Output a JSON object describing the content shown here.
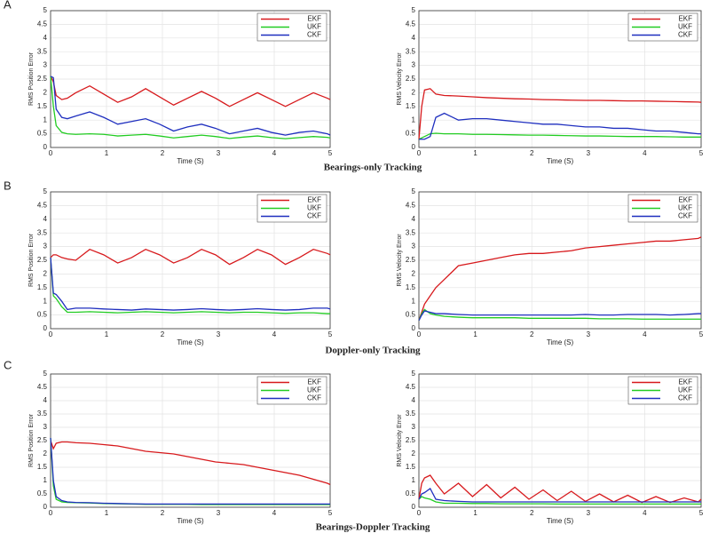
{
  "panels": [
    {
      "letter": "A",
      "caption": "Bearings-only Tracking"
    },
    {
      "letter": "B",
      "caption": "Doppler-only Tracking"
    },
    {
      "letter": "C",
      "caption": "Bearings-Doppler Tracking"
    }
  ],
  "chart_data": [
    {
      "type": "line",
      "x_label": "Time (S)",
      "y_label": "RMS Position Error",
      "xlim": [
        0,
        5
      ],
      "ylim": [
        0,
        5
      ],
      "xticks": [
        0,
        1,
        2,
        3,
        4,
        5
      ],
      "yticks": [
        0,
        0.5,
        1,
        1.5,
        2,
        2.5,
        3,
        3.5,
        4,
        4.5,
        5
      ],
      "grid": true,
      "legend": "upper right",
      "x": [
        0,
        0.05,
        0.1,
        0.2,
        0.3,
        0.45,
        0.7,
        0.95,
        1.2,
        1.45,
        1.7,
        1.95,
        2.2,
        2.45,
        2.7,
        2.95,
        3.2,
        3.45,
        3.7,
        3.95,
        4.2,
        4.45,
        4.7,
        4.95,
        5
      ],
      "series": [
        {
          "name": "EKF",
          "color": "#d7191c",
          "values": [
            2.6,
            2.4,
            1.9,
            1.75,
            1.8,
            2.0,
            2.25,
            1.95,
            1.65,
            1.85,
            2.15,
            1.85,
            1.55,
            1.8,
            2.05,
            1.8,
            1.5,
            1.75,
            2.0,
            1.75,
            1.5,
            1.75,
            2.0,
            1.8,
            1.75
          ]
        },
        {
          "name": "UKF",
          "color": "#22cc22",
          "values": [
            2.6,
            1.5,
            0.8,
            0.55,
            0.5,
            0.48,
            0.5,
            0.48,
            0.42,
            0.45,
            0.48,
            0.42,
            0.35,
            0.4,
            0.45,
            0.4,
            0.33,
            0.38,
            0.42,
            0.36,
            0.32,
            0.36,
            0.4,
            0.37,
            0.35
          ]
        },
        {
          "name": "CKF",
          "color": "#1f2fbf",
          "values": [
            2.6,
            2.55,
            1.4,
            1.1,
            1.05,
            1.15,
            1.3,
            1.1,
            0.85,
            0.95,
            1.05,
            0.85,
            0.6,
            0.75,
            0.85,
            0.7,
            0.5,
            0.6,
            0.7,
            0.55,
            0.45,
            0.55,
            0.6,
            0.5,
            0.45
          ]
        }
      ]
    },
    {
      "type": "line",
      "x_label": "Time (S)",
      "y_label": "RMS Velocity Error",
      "xlim": [
        0,
        5
      ],
      "ylim": [
        0,
        5
      ],
      "xticks": [
        0,
        1,
        2,
        3,
        4,
        5
      ],
      "yticks": [
        0,
        0.5,
        1,
        1.5,
        2,
        2.5,
        3,
        3.5,
        4,
        4.5,
        5
      ],
      "grid": true,
      "legend": "upper right",
      "x": [
        0,
        0.05,
        0.1,
        0.2,
        0.3,
        0.45,
        0.7,
        0.95,
        1.2,
        1.45,
        1.7,
        1.95,
        2.2,
        2.45,
        2.7,
        2.95,
        3.2,
        3.45,
        3.7,
        3.95,
        4.2,
        4.45,
        4.7,
        4.95,
        5
      ],
      "series": [
        {
          "name": "EKF",
          "color": "#d7191c",
          "values": [
            0.3,
            1.5,
            2.1,
            2.15,
            1.95,
            1.9,
            1.88,
            1.85,
            1.82,
            1.8,
            1.78,
            1.77,
            1.75,
            1.74,
            1.73,
            1.72,
            1.72,
            1.71,
            1.7,
            1.7,
            1.69,
            1.68,
            1.67,
            1.66,
            1.65
          ]
        },
        {
          "name": "UKF",
          "color": "#22cc22",
          "values": [
            0.3,
            0.35,
            0.4,
            0.5,
            0.52,
            0.5,
            0.5,
            0.48,
            0.48,
            0.47,
            0.46,
            0.45,
            0.45,
            0.44,
            0.43,
            0.42,
            0.42,
            0.41,
            0.4,
            0.4,
            0.4,
            0.39,
            0.38,
            0.38,
            0.38
          ]
        },
        {
          "name": "CKF",
          "color": "#1f2fbf",
          "values": [
            0.3,
            0.3,
            0.3,
            0.4,
            1.1,
            1.25,
            1.0,
            1.05,
            1.05,
            1.0,
            0.95,
            0.9,
            0.85,
            0.85,
            0.8,
            0.75,
            0.75,
            0.7,
            0.7,
            0.65,
            0.6,
            0.6,
            0.55,
            0.5,
            0.5
          ]
        }
      ]
    },
    {
      "type": "line",
      "x_label": "Time (S)",
      "y_label": "RMS Position Error",
      "xlim": [
        0,
        5
      ],
      "ylim": [
        0,
        5
      ],
      "xticks": [
        0,
        1,
        2,
        3,
        4,
        5
      ],
      "yticks": [
        0,
        0.5,
        1,
        1.5,
        2,
        2.5,
        3,
        3.5,
        4,
        4.5,
        5
      ],
      "grid": true,
      "legend": "upper right",
      "x": [
        0,
        0.05,
        0.1,
        0.2,
        0.3,
        0.45,
        0.7,
        0.95,
        1.2,
        1.45,
        1.7,
        1.95,
        2.2,
        2.45,
        2.7,
        2.95,
        3.2,
        3.45,
        3.7,
        3.95,
        4.2,
        4.45,
        4.7,
        4.95,
        5
      ],
      "series": [
        {
          "name": "EKF",
          "color": "#d7191c",
          "values": [
            2.6,
            2.7,
            2.7,
            2.6,
            2.55,
            2.5,
            2.9,
            2.7,
            2.4,
            2.6,
            2.9,
            2.7,
            2.4,
            2.6,
            2.9,
            2.7,
            2.35,
            2.6,
            2.9,
            2.7,
            2.35,
            2.6,
            2.9,
            2.75,
            2.7
          ]
        },
        {
          "name": "UKF",
          "color": "#22cc22",
          "values": [
            2.6,
            1.2,
            1.1,
            0.8,
            0.6,
            0.6,
            0.62,
            0.6,
            0.58,
            0.6,
            0.62,
            0.6,
            0.58,
            0.6,
            0.62,
            0.6,
            0.58,
            0.6,
            0.6,
            0.58,
            0.56,
            0.58,
            0.58,
            0.55,
            0.55
          ]
        },
        {
          "name": "CKF",
          "color": "#1f2fbf",
          "values": [
            2.6,
            1.3,
            1.25,
            1.0,
            0.7,
            0.75,
            0.75,
            0.72,
            0.7,
            0.68,
            0.72,
            0.7,
            0.68,
            0.7,
            0.73,
            0.7,
            0.68,
            0.7,
            0.73,
            0.7,
            0.68,
            0.7,
            0.75,
            0.75,
            0.72
          ]
        }
      ]
    },
    {
      "type": "line",
      "x_label": "Time (S)",
      "y_label": "RMS Velocity Error",
      "xlim": [
        0,
        5
      ],
      "ylim": [
        0,
        5
      ],
      "xticks": [
        0,
        1,
        2,
        3,
        4,
        5
      ],
      "yticks": [
        0,
        0.5,
        1,
        1.5,
        2,
        2.5,
        3,
        3.5,
        4,
        4.5,
        5
      ],
      "grid": true,
      "legend": "upper right",
      "x": [
        0,
        0.05,
        0.1,
        0.2,
        0.3,
        0.45,
        0.7,
        0.95,
        1.2,
        1.45,
        1.7,
        1.95,
        2.2,
        2.45,
        2.7,
        2.95,
        3.2,
        3.45,
        3.7,
        3.95,
        4.2,
        4.45,
        4.7,
        4.95,
        5
      ],
      "series": [
        {
          "name": "EKF",
          "color": "#d7191c",
          "values": [
            0.3,
            0.6,
            0.9,
            1.2,
            1.5,
            1.8,
            2.3,
            2.4,
            2.5,
            2.6,
            2.7,
            2.75,
            2.75,
            2.8,
            2.85,
            2.95,
            3.0,
            3.05,
            3.1,
            3.15,
            3.2,
            3.2,
            3.25,
            3.3,
            3.35
          ]
        },
        {
          "name": "UKF",
          "color": "#22cc22",
          "values": [
            0.3,
            0.55,
            0.7,
            0.55,
            0.5,
            0.45,
            0.42,
            0.4,
            0.4,
            0.4,
            0.4,
            0.38,
            0.38,
            0.38,
            0.38,
            0.38,
            0.36,
            0.36,
            0.36,
            0.35,
            0.35,
            0.35,
            0.35,
            0.35,
            0.35
          ]
        },
        {
          "name": "CKF",
          "color": "#1f2fbf",
          "values": [
            0.3,
            0.5,
            0.65,
            0.6,
            0.55,
            0.55,
            0.52,
            0.5,
            0.5,
            0.5,
            0.5,
            0.5,
            0.5,
            0.5,
            0.5,
            0.52,
            0.5,
            0.5,
            0.52,
            0.52,
            0.52,
            0.5,
            0.52,
            0.55,
            0.55
          ]
        }
      ]
    },
    {
      "type": "line",
      "x_label": "Time (S)",
      "y_label": "RMS Position Error",
      "xlim": [
        0,
        5
      ],
      "ylim": [
        0,
        5
      ],
      "xticks": [
        0,
        1,
        2,
        3,
        4,
        5
      ],
      "yticks": [
        0,
        0.5,
        1,
        1.5,
        2,
        2.5,
        3,
        3.5,
        4,
        4.5,
        5
      ],
      "grid": true,
      "legend": "upper right",
      "x": [
        0,
        0.05,
        0.1,
        0.2,
        0.3,
        0.45,
        0.7,
        0.95,
        1.2,
        1.45,
        1.7,
        1.95,
        2.2,
        2.45,
        2.7,
        2.95,
        3.2,
        3.45,
        3.7,
        3.95,
        4.2,
        4.45,
        4.7,
        4.95,
        5
      ],
      "series": [
        {
          "name": "EKF",
          "color": "#d7191c",
          "values": [
            2.5,
            2.2,
            2.4,
            2.45,
            2.45,
            2.42,
            2.4,
            2.35,
            2.3,
            2.2,
            2.1,
            2.05,
            2.0,
            1.9,
            1.8,
            1.7,
            1.65,
            1.6,
            1.5,
            1.4,
            1.3,
            1.2,
            1.05,
            0.9,
            0.85
          ]
        },
        {
          "name": "UKF",
          "color": "#22cc22",
          "values": [
            2.6,
            0.8,
            0.3,
            0.2,
            0.18,
            0.17,
            0.16,
            0.14,
            0.13,
            0.12,
            0.11,
            0.11,
            0.11,
            0.11,
            0.1,
            0.1,
            0.1,
            0.1,
            0.1,
            0.1,
            0.1,
            0.1,
            0.1,
            0.1,
            0.1
          ]
        },
        {
          "name": "CKF",
          "color": "#1f2fbf",
          "values": [
            2.6,
            1.0,
            0.4,
            0.25,
            0.2,
            0.18,
            0.17,
            0.15,
            0.14,
            0.13,
            0.12,
            0.12,
            0.12,
            0.12,
            0.12,
            0.12,
            0.12,
            0.12,
            0.12,
            0.12,
            0.12,
            0.12,
            0.12,
            0.12,
            0.12
          ]
        }
      ]
    },
    {
      "type": "line",
      "x_label": "Time (S)",
      "y_label": "RMS Velocity Error",
      "xlim": [
        0,
        5
      ],
      "ylim": [
        0,
        5
      ],
      "xticks": [
        0,
        1,
        2,
        3,
        4,
        5
      ],
      "yticks": [
        0,
        0.5,
        1,
        1.5,
        2,
        2.5,
        3,
        3.5,
        4,
        4.5,
        5
      ],
      "grid": true,
      "legend": "upper right",
      "x": [
        0,
        0.05,
        0.1,
        0.2,
        0.3,
        0.45,
        0.7,
        0.95,
        1.2,
        1.45,
        1.7,
        1.95,
        2.2,
        2.45,
        2.7,
        2.95,
        3.2,
        3.45,
        3.7,
        3.95,
        4.2,
        4.45,
        4.7,
        4.95,
        5
      ],
      "series": [
        {
          "name": "EKF",
          "color": "#d7191c",
          "values": [
            0.3,
            0.9,
            1.1,
            1.2,
            0.9,
            0.5,
            0.9,
            0.4,
            0.85,
            0.35,
            0.75,
            0.3,
            0.65,
            0.25,
            0.6,
            0.22,
            0.5,
            0.2,
            0.45,
            0.18,
            0.4,
            0.18,
            0.35,
            0.2,
            0.3
          ]
        },
        {
          "name": "UKF",
          "color": "#22cc22",
          "values": [
            0.3,
            0.4,
            0.35,
            0.3,
            0.2,
            0.15,
            0.15,
            0.14,
            0.14,
            0.13,
            0.13,
            0.13,
            0.13,
            0.12,
            0.12,
            0.12,
            0.12,
            0.12,
            0.12,
            0.12,
            0.12,
            0.12,
            0.12,
            0.12,
            0.12
          ]
        },
        {
          "name": "CKF",
          "color": "#1f2fbf",
          "values": [
            0.3,
            0.5,
            0.55,
            0.7,
            0.3,
            0.25,
            0.22,
            0.2,
            0.2,
            0.2,
            0.2,
            0.2,
            0.2,
            0.2,
            0.2,
            0.2,
            0.2,
            0.2,
            0.2,
            0.2,
            0.2,
            0.2,
            0.2,
            0.2,
            0.2
          ]
        }
      ]
    }
  ]
}
